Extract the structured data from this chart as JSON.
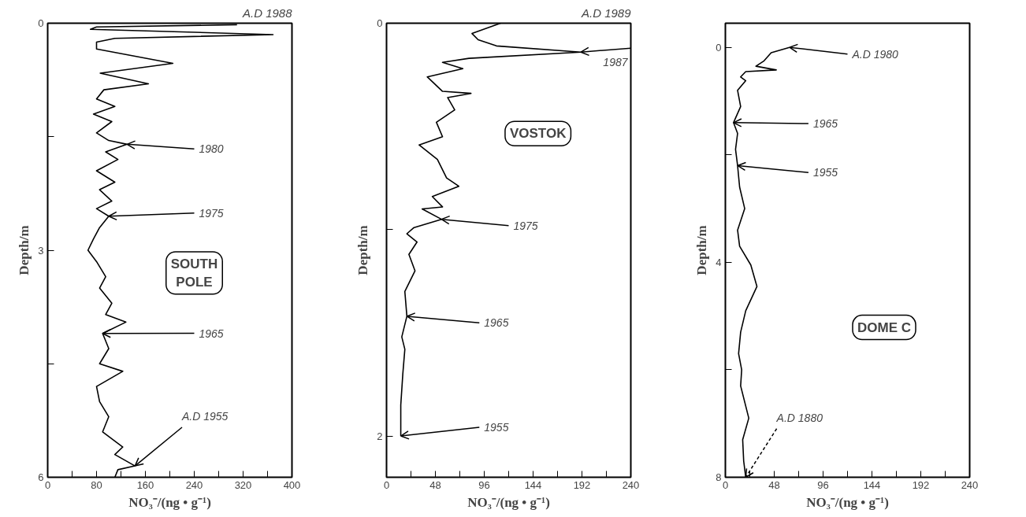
{
  "chart_data": [
    {
      "type": "line",
      "title": "A.D 1988",
      "xlabel": "NO₃⁻/(ng • g⁻¹)",
      "ylabel": "Depth/m",
      "xlim": [
        0,
        400
      ],
      "xticks": [
        0,
        {
          "value": 40,
          "label": null
        },
        80,
        {
          "value": 120,
          "label": null
        },
        160,
        {
          "value": 200,
          "label": null
        },
        240,
        {
          "value": 280,
          "label": null
        },
        320,
        {
          "value": 360,
          "label": null
        },
        400
      ],
      "ylim": [
        6,
        0
      ],
      "yticks": [
        0,
        {
          "value": 1.5,
          "label": null
        },
        3,
        {
          "value": 4.5,
          "label": null
        },
        6
      ],
      "series": [
        {
          "color": "#000000",
          "x": [
            310,
            80,
            70,
            369,
            110,
            80,
            80,
            205,
            86,
            165,
            92,
            80,
            110,
            75,
            105,
            80,
            100,
            130,
            95,
            115,
            80,
            110,
            85,
            105,
            80,
            100,
            85,
            75,
            66,
            80,
            95,
            85,
            105,
            95,
            128,
            90,
            100,
            85,
            123,
            80,
            85,
            100,
            90,
            123,
            110,
            143,
            115,
            110
          ],
          "values": [
            0.02,
            0.05,
            0.08,
            0.15,
            0.2,
            0.25,
            0.34,
            0.53,
            0.66,
            0.8,
            0.88,
            1.0,
            1.1,
            1.2,
            1.3,
            1.45,
            1.55,
            1.6,
            1.7,
            1.8,
            1.95,
            2.1,
            2.2,
            2.35,
            2.45,
            2.55,
            2.7,
            2.85,
            3.0,
            3.15,
            3.35,
            3.5,
            3.7,
            3.85,
            3.95,
            4.1,
            4.3,
            4.5,
            4.6,
            4.8,
            5.0,
            5.2,
            5.4,
            5.6,
            5.7,
            5.85,
            5.9,
            6.0
          ]
        }
      ],
      "annotations": [
        "SOUTH\nPOLE",
        {
          "text": "1980",
          "x": 130,
          "y": 1.6
        },
        {
          "text": "1975",
          "x": 100,
          "y": 2.55
        },
        {
          "text": "1965",
          "x": 90,
          "y": 4.1
        },
        {
          "text": "A.D 1955",
          "x": 143,
          "y": 5.85
        }
      ]
    },
    {
      "type": "line",
      "title": "A.D 1989",
      "xlabel": "NO₃⁻/(ng • g⁻¹)",
      "ylabel": "Depth/m",
      "xlim": [
        0,
        240
      ],
      "xticks": [
        0,
        {
          "value": 24,
          "label": null
        },
        48,
        {
          "value": 72,
          "label": null
        },
        96,
        {
          "value": 120,
          "label": null
        },
        144,
        {
          "value": 168,
          "label": null
        },
        192,
        {
          "value": 216,
          "label": null
        },
        240
      ],
      "ylim": [
        2.2,
        0
      ],
      "yticks": [
        0,
        {
          "value": 1,
          "label": null
        },
        2
      ],
      "series": [
        {
          "color": "#000000",
          "x": [
            112,
            84,
            90,
            108,
            191,
            81,
            55,
            75,
            40,
            55,
            83,
            60,
            67,
            49,
            55,
            32,
            50,
            59,
            71,
            45,
            55,
            35,
            54,
            27,
            20,
            30,
            22,
            28,
            18,
            20,
            15,
            18,
            16,
            14,
            14
          ],
          "values": [
            0.0,
            0.05,
            0.08,
            0.11,
            0.14,
            0.17,
            0.19,
            0.22,
            0.26,
            0.33,
            0.34,
            0.36,
            0.42,
            0.48,
            0.55,
            0.59,
            0.66,
            0.75,
            0.79,
            0.84,
            0.89,
            0.9,
            0.95,
            0.99,
            1.02,
            1.06,
            1.12,
            1.2,
            1.3,
            1.42,
            1.52,
            1.58,
            1.7,
            1.85,
            2.0
          ]
        }
      ],
      "annotations": [
        "VOSTOK",
        {
          "text": "1987",
          "x": 191,
          "y": 0.14
        },
        {
          "text": "1975",
          "x": 54,
          "y": 0.95
        },
        {
          "text": "1965",
          "x": 20,
          "y": 1.42
        },
        {
          "text": "1955",
          "x": 14,
          "y": 2.0
        }
      ]
    },
    {
      "type": "line",
      "xlabel": "NO₃⁻/(ng • g⁻¹)",
      "ylabel": "Depth/m",
      "xlim": [
        0,
        240
      ],
      "xticks": [
        0,
        {
          "value": 24,
          "label": null
        },
        48,
        {
          "value": 72,
          "label": null
        },
        96,
        {
          "value": 120,
          "label": null
        },
        144,
        {
          "value": 168,
          "label": null
        },
        192,
        {
          "value": 216,
          "label": null
        },
        240
      ],
      "ylim": [
        8,
        -0.45
      ],
      "yticks": [
        0,
        {
          "value": 2,
          "label": null
        },
        4,
        {
          "value": 6,
          "label": null
        },
        8
      ],
      "series": [
        {
          "color": "#000000",
          "x": [
            63,
            45,
            38,
            30,
            50,
            20,
            15,
            20,
            12,
            15,
            8,
            12,
            10,
            12,
            14,
            19,
            12,
            14,
            25,
            31,
            20,
            15,
            13,
            16,
            15,
            23,
            17,
            18,
            20
          ],
          "values": [
            0.0,
            0.1,
            0.25,
            0.35,
            0.42,
            0.45,
            0.55,
            0.62,
            0.8,
            1.1,
            1.4,
            1.6,
            1.9,
            2.2,
            2.6,
            3.0,
            3.4,
            3.7,
            4.05,
            4.45,
            4.9,
            5.3,
            5.7,
            6.0,
            6.3,
            6.9,
            7.3,
            7.7,
            8.0
          ]
        }
      ],
      "annotations": [
        "DOME C",
        {
          "text": "A.D 1980",
          "x": 63,
          "y": 0.0
        },
        {
          "text": "1965",
          "x": 8,
          "y": 1.4
        },
        {
          "text": "1955",
          "x": 12,
          "y": 2.2
        },
        {
          "text": "A.D 1880",
          "x": 20,
          "y": 8.0
        }
      ]
    }
  ]
}
